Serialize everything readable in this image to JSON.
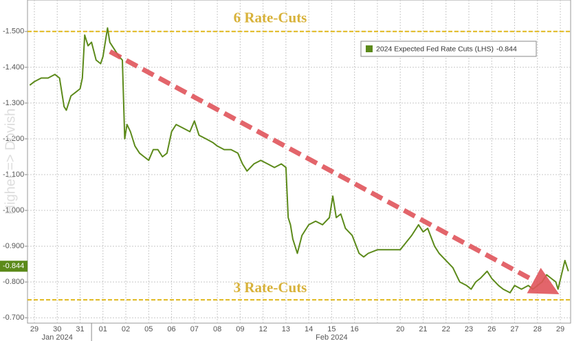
{
  "chart_data": {
    "type": "line",
    "categories": [
      "29",
      "30",
      "31",
      "01",
      "02",
      "05",
      "06",
      "07",
      "08",
      "09",
      "12",
      "13",
      "14",
      "15",
      "16",
      null,
      "20",
      "21",
      "22",
      "23",
      "26",
      "27",
      "28",
      "29"
    ],
    "category_groups": [
      {
        "label": "Jan 2024",
        "start": 0,
        "end": 2
      },
      {
        "label": "Feb 2024",
        "start": 3,
        "end": 23
      }
    ],
    "xlim": [
      -0.3,
      23.45
    ],
    "ylim": [
      -0.685,
      -1.588
    ],
    "yticks": [
      {
        "value": -1.5,
        "label": "-1.500"
      },
      {
        "value": -1.4,
        "label": "-1.400"
      },
      {
        "value": -1.3,
        "label": "-1.300"
      },
      {
        "value": -1.2,
        "label": "-1.200"
      },
      {
        "value": -1.1,
        "label": "-1.100"
      },
      {
        "value": -1.0,
        "label": "-1.000"
      },
      {
        "value": -0.9,
        "label": "-0.900"
      },
      {
        "value": -0.8,
        "label": "-0.800"
      },
      {
        "value": -0.7,
        "label": "-0.700"
      }
    ],
    "grid": true,
    "y_axis_label": "Higher => Dovish",
    "current_value": -0.844,
    "reference_lines": [
      {
        "value": -1.5,
        "label": "6 Rate-Cuts"
      },
      {
        "value": -0.75,
        "label": "3 Rate-Cuts"
      }
    ],
    "reference_color": "#e0b81c",
    "series": [
      {
        "name": "2024 Expected Fed Rate Cuts (LHS)",
        "color": "#5c8a1a",
        "x": [
          -0.2,
          0,
          0.3,
          0.6,
          0.9,
          1.1,
          1.3,
          1.4,
          1.6,
          1.8,
          2.0,
          2.1,
          2.2,
          2.35,
          2.5,
          2.7,
          2.9,
          3.0,
          3.1,
          3.2,
          3.3,
          3.5,
          3.7,
          3.85,
          3.95,
          4.05,
          4.2,
          4.4,
          4.6,
          4.8,
          5.0,
          5.2,
          5.4,
          5.6,
          5.8,
          6.0,
          6.2,
          6.5,
          6.8,
          7.0,
          7.2,
          7.5,
          7.8,
          8.0,
          8.3,
          8.6,
          8.9,
          9.1,
          9.3,
          9.6,
          9.9,
          10.2,
          10.5,
          10.8,
          11.0,
          11.1,
          11.2,
          11.3,
          11.5,
          11.7,
          12.0,
          12.3,
          12.6,
          12.9,
          13.05,
          13.2,
          13.4,
          13.6,
          13.9,
          14.2,
          14.4,
          14.6,
          15.0,
          15.5,
          16.0,
          16.5,
          16.8,
          17.0,
          17.2,
          17.5,
          17.7,
          18.0,
          18.3,
          18.6,
          18.9,
          19.1,
          19.3,
          19.5,
          19.8,
          20.0,
          20.3,
          20.5,
          20.8,
          21.0,
          21.3,
          21.6,
          21.8,
          22.0,
          22.2,
          22.4,
          22.6,
          22.8,
          22.9,
          23.05,
          23.2,
          23.35
        ],
        "values": [
          -1.35,
          -1.36,
          -1.37,
          -1.37,
          -1.38,
          -1.37,
          -1.29,
          -1.28,
          -1.32,
          -1.33,
          -1.34,
          -1.37,
          -1.49,
          -1.46,
          -1.47,
          -1.42,
          -1.41,
          -1.43,
          -1.47,
          -1.51,
          -1.47,
          -1.45,
          -1.43,
          -1.42,
          -1.2,
          -1.24,
          -1.22,
          -1.18,
          -1.16,
          -1.15,
          -1.14,
          -1.17,
          -1.17,
          -1.15,
          -1.16,
          -1.22,
          -1.24,
          -1.23,
          -1.22,
          -1.25,
          -1.21,
          -1.2,
          -1.19,
          -1.18,
          -1.17,
          -1.17,
          -1.16,
          -1.13,
          -1.11,
          -1.13,
          -1.14,
          -1.13,
          -1.12,
          -1.13,
          -1.12,
          -0.98,
          -0.96,
          -0.92,
          -0.88,
          -0.93,
          -0.96,
          -0.97,
          -0.96,
          -0.98,
          -1.04,
          -0.98,
          -0.99,
          -0.95,
          -0.93,
          -0.88,
          -0.87,
          -0.88,
          -0.89,
          -0.89,
          -0.89,
          -0.93,
          -0.96,
          -0.94,
          -0.95,
          -0.9,
          -0.88,
          -0.86,
          -0.84,
          -0.8,
          -0.79,
          -0.78,
          -0.8,
          -0.81,
          -0.83,
          -0.81,
          -0.79,
          -0.78,
          -0.77,
          -0.79,
          -0.78,
          -0.79,
          -0.78,
          -0.79,
          -0.8,
          -0.82,
          -0.81,
          -0.8,
          -0.78,
          -0.82,
          -0.86,
          -0.83
        ]
      }
    ]
  }
}
